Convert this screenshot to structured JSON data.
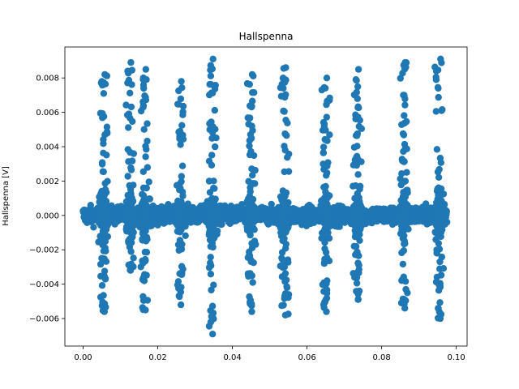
{
  "chart_data": {
    "type": "scatter",
    "title": "Hallspenna",
    "xlabel": "",
    "ylabel": "Hallspenna [V]",
    "xlim": [
      -0.0049,
      0.1029
    ],
    "ylim": [
      -0.0076,
      0.0098
    ],
    "x_ticks": [
      0.0,
      0.02,
      0.04,
      0.06,
      0.08,
      0.1
    ],
    "x_tick_labels": [
      "0.00",
      "0.02",
      "0.04",
      "0.06",
      "0.08",
      "0.10"
    ],
    "y_ticks": [
      -0.006,
      -0.004,
      -0.002,
      0.0,
      0.002,
      0.004,
      0.006,
      0.008
    ],
    "y_tick_labels": [
      "−0.006",
      "−0.004",
      "−0.002",
      "0.000",
      "0.002",
      "0.004",
      "0.006",
      "0.008"
    ],
    "grid": false,
    "legend": "none",
    "series": [
      {
        "name": "Hallspenna",
        "color": "#1f77b4",
        "marker": "circle",
        "description": "Dense band of points near 0 V (about -0.001 to 0.001 V) across x = 0 to 0.097, with periodic bursts reaching up to about 0.009 V and down to about -0.007 V centered near x = 0.005, 0.0125, 0.016, 0.026, 0.035, 0.045, 0.054, 0.065, 0.074, 0.086, 0.096.",
        "bursts": [
          {
            "x_center": 0.0055,
            "y_max": 0.0082,
            "y_min": -0.0056
          },
          {
            "x_center": 0.0125,
            "y_max": 0.0089,
            "y_min": -0.0032
          },
          {
            "x_center": 0.0165,
            "y_max": 0.0085,
            "y_min": -0.0055
          },
          {
            "x_center": 0.026,
            "y_max": 0.0078,
            "y_min": -0.0052
          },
          {
            "x_center": 0.0345,
            "y_max": 0.0091,
            "y_min": -0.0069
          },
          {
            "x_center": 0.045,
            "y_max": 0.0082,
            "y_min": -0.0056
          },
          {
            "x_center": 0.054,
            "y_max": 0.0086,
            "y_min": -0.0058
          },
          {
            "x_center": 0.065,
            "y_max": 0.008,
            "y_min": -0.0056
          },
          {
            "x_center": 0.0735,
            "y_max": 0.0085,
            "y_min": -0.0049
          },
          {
            "x_center": 0.086,
            "y_max": 0.0089,
            "y_min": -0.0054
          },
          {
            "x_center": 0.0955,
            "y_max": 0.0091,
            "y_min": -0.006
          }
        ],
        "band": {
          "x_start": 0.0,
          "x_end": 0.0975,
          "y_min": -0.001,
          "y_max": 0.001
        }
      }
    ]
  }
}
